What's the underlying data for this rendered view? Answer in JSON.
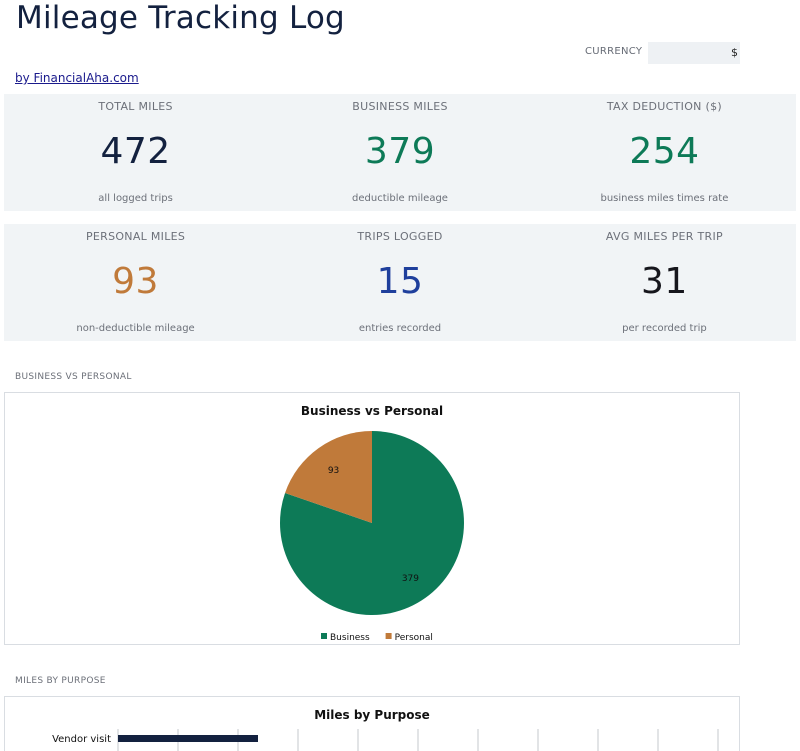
{
  "header": {
    "title": "Mileage Tracking Log",
    "currency_label": "CURRENCY",
    "currency_value": "$",
    "byline": "by FinancialAha.com"
  },
  "kpis": [
    {
      "label": "TOTAL MILES",
      "value": "472",
      "sub": "all logged trips",
      "color": "#13213f"
    },
    {
      "label": "BUSINESS MILES",
      "value": "379",
      "sub": "deductible mileage",
      "color": "#0d7a57"
    },
    {
      "label": "TAX DEDUCTION ($)",
      "value": "254",
      "sub": "business miles times rate",
      "color": "#0d7a57"
    },
    {
      "label": "PERSONAL MILES",
      "value": "93",
      "sub": "non-deductible mileage",
      "color": "#c07a3a"
    },
    {
      "label": "TRIPS LOGGED",
      "value": "15",
      "sub": "entries recorded",
      "color": "#1f3f9c"
    },
    {
      "label": "AVG MILES PER TRIP",
      "value": "31",
      "sub": "per recorded trip",
      "color": "#16161c"
    }
  ],
  "sections": {
    "pie_label": "BUSINESS VS PERSONAL",
    "bar_label": "MILES BY PURPOSE"
  },
  "chart_data": [
    {
      "type": "pie",
      "title": "Business vs Personal",
      "categories": [
        "Business",
        "Personal"
      ],
      "values": [
        379,
        93
      ],
      "colors": [
        "#0d7a57",
        "#c07a3a"
      ],
      "legend": "bottom"
    },
    {
      "type": "bar",
      "orientation": "horizontal",
      "title": "Miles by Purpose",
      "categories": [
        "Vendor visit"
      ],
      "values": [
        140
      ],
      "xlim": [
        0,
        600
      ],
      "colors": [
        "#13213f"
      ],
      "grid": true
    }
  ]
}
